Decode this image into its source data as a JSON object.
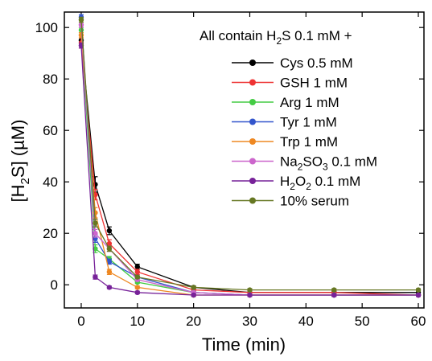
{
  "chart_data": {
    "type": "line",
    "xlabel": "Time (min)",
    "ylabel_parts": {
      "open": "[H",
      "sub": "2",
      "close": "S] (µM)"
    },
    "xlim": [
      -3,
      61
    ],
    "ylim": [
      -9,
      106
    ],
    "xticks": [
      0,
      10,
      20,
      30,
      40,
      50,
      60
    ],
    "yticks": [
      0,
      20,
      40,
      60,
      80,
      100
    ],
    "legend_title": {
      "pre": "All contain H",
      "sub": "2",
      "post": "S 0.1 mM +"
    },
    "legend_position": "top-right",
    "x": [
      0,
      2.5,
      5,
      10,
      20,
      30,
      45,
      60
    ],
    "series": [
      {
        "name": "Cys 0.5 mM",
        "label_parts": [
          {
            "t": "Cys 0.5 mM"
          }
        ],
        "color": "#000000",
        "values": [
          95,
          39,
          21,
          7,
          -1,
          -3,
          -3,
          -3
        ],
        "errors": [
          2,
          3,
          1.5,
          1,
          0.5,
          0.5,
          0.5,
          0.5
        ]
      },
      {
        "name": "GSH 1 mM",
        "label_parts": [
          {
            "t": "GSH 1 mM"
          }
        ],
        "color": "#ee3333",
        "values": [
          94,
          35,
          16,
          5,
          -2,
          -3,
          -3,
          -4
        ],
        "errors": [
          2,
          2,
          1.5,
          1,
          0.5,
          0.5,
          0.5,
          0.5
        ]
      },
      {
        "name": "Arg 1 mM",
        "label_parts": [
          {
            "t": "Arg 1 mM"
          }
        ],
        "color": "#44cc44",
        "values": [
          99,
          14,
          10,
          1,
          -3,
          -4,
          -4,
          -4
        ],
        "errors": [
          1,
          1.5,
          1,
          0.5,
          0.5,
          0.5,
          0.5,
          0.5
        ]
      },
      {
        "name": "Tyr 1 mM",
        "label_parts": [
          {
            "t": "Tyr 1 mM"
          }
        ],
        "color": "#3355cc",
        "values": [
          104,
          18,
          9,
          3,
          -3,
          -4,
          -4,
          -4
        ],
        "errors": [
          1,
          1.5,
          1,
          0.5,
          0.5,
          0.5,
          0.5,
          0.5
        ]
      },
      {
        "name": "Trp 1 mM",
        "label_parts": [
          {
            "t": "Trp 1 mM"
          }
        ],
        "color": "#ee8822",
        "values": [
          97,
          28,
          5,
          -1,
          -4,
          -4,
          -4,
          -4
        ],
        "errors": [
          1,
          2,
          1,
          0.5,
          0.5,
          0.5,
          0.5,
          0.5
        ]
      },
      {
        "name": "Na2SO3 0.1 mM",
        "label_parts": [
          {
            "t": "Na"
          },
          {
            "t": "2",
            "sub": true
          },
          {
            "t": "SO"
          },
          {
            "t": "3",
            "sub": true
          },
          {
            "t": " 0.1 mM"
          }
        ],
        "color": "#cc66cc",
        "values": [
          101,
          20,
          14,
          2,
          -3,
          -4,
          -4,
          -4
        ],
        "errors": [
          1,
          1.5,
          1,
          0.5,
          0.5,
          0.5,
          0.5,
          0.5
        ]
      },
      {
        "name": "H2O2 0.1 mM",
        "label_parts": [
          {
            "t": "H"
          },
          {
            "t": "2",
            "sub": true
          },
          {
            "t": "O"
          },
          {
            "t": "2",
            "sub": true
          },
          {
            "t": " 0.1 mM"
          }
        ],
        "color": "#772299",
        "values": [
          93,
          3,
          -1,
          -3,
          -4,
          -4,
          -4,
          -4
        ],
        "errors": [
          1,
          0.8,
          0.5,
          0.5,
          0.5,
          0.5,
          0.5,
          0.5
        ]
      },
      {
        "name": "10% serum",
        "label_parts": [
          {
            "t": "10% serum"
          }
        ],
        "color": "#667722",
        "values": [
          103,
          24,
          14,
          3,
          -1,
          -2,
          -2,
          -2
        ],
        "errors": [
          1,
          1.5,
          1,
          0.5,
          0.5,
          0.5,
          0.5,
          0.5
        ]
      }
    ]
  }
}
